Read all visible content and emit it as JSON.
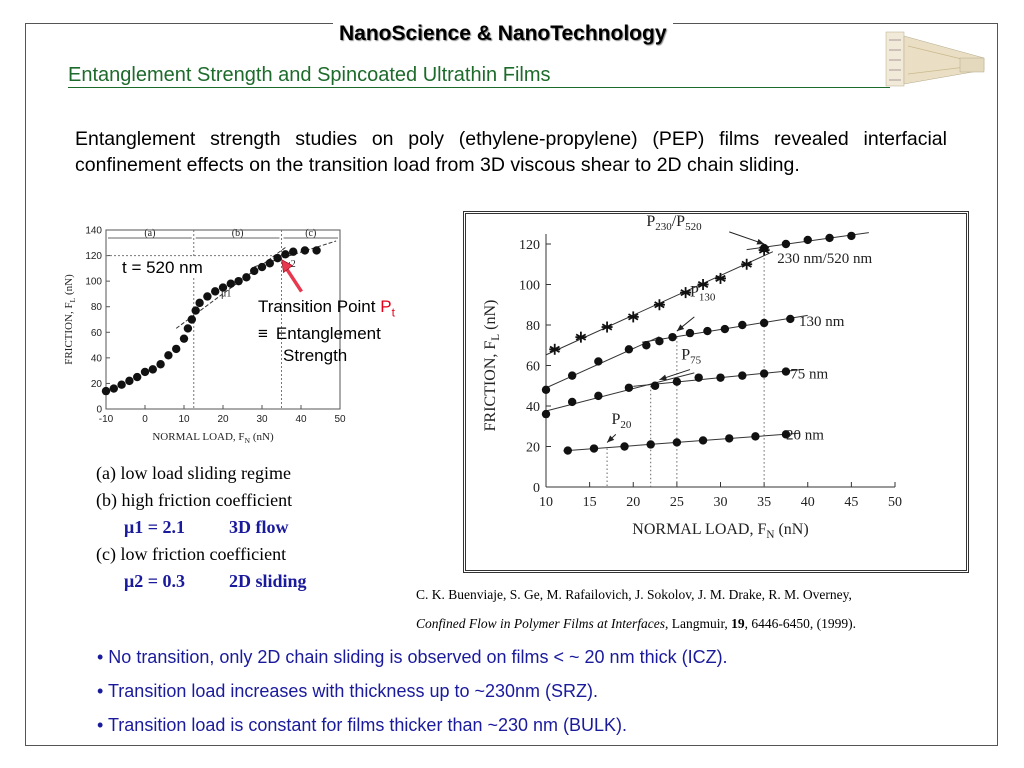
{
  "header": {
    "title": "NanoScience & NanoTechnology",
    "subtitle": "Entanglement Strength  and Spincoated Ultrathin Films"
  },
  "intro": "Entanglement strength studies on poly (ethylene-propylene) (PEP) films revealed interfacial confinement effects on the transition load from 3D viscous shear to 2D chain sliding.",
  "left_annotations": {
    "thickness": "t = 520 nm",
    "transition_point": "Transition Point ",
    "pt_symbol": "P",
    "pt_sub": "t",
    "equiv": "≡",
    "entanglement_1": "Entanglement",
    "entanglement_2": "Strength"
  },
  "regimes": {
    "a": "(a) low load sliding regime",
    "b": "(b) high friction coefficient",
    "mu1": "μ1 = 2.1",
    "mu1_mode": "3D flow",
    "c": "(c) low friction coefficient",
    "mu2": "μ2 = 0.3",
    "mu2_mode": "2D sliding"
  },
  "citation": {
    "authors": "C. K. Buenviaje, S. Ge, M. Rafailovich, J. Sokolov, J. M. Drake, R. M. Overney,",
    "title": "Confined Flow in Polymer Films at Interfaces",
    "journal": ", Langmuir, ",
    "volume": "19",
    "pages": ", 6446-6450, (1999)."
  },
  "bullets": [
    "• No transition, only 2D chain sliding is observed on films < ~ 20 nm thick (ICZ).",
    "• Transition load increases with thickness up to ~230nm (SRZ).",
    "• Transition load is constant for films thicker than ~230 nm (BULK)."
  ],
  "colors": {
    "subtitle_green": "#1d6b2b",
    "bullet_blue": "#1a1a9c",
    "pt_red": "#e4001a",
    "arrow_red": "#e8384f"
  },
  "chart_data": [
    {
      "type": "scatter",
      "xlabel": "NORMAL LOAD, F",
      "xlabel_sub": "N",
      "xlabel_unit": " (nN)",
      "ylabel": "FRICTION, F",
      "ylabel_sub": "L",
      "ylabel_unit": " (nN)",
      "xlim": [
        -10,
        50
      ],
      "ylim": [
        0,
        140
      ],
      "xticks": [
        -10,
        0,
        10,
        20,
        30,
        40,
        50
      ],
      "yticks": [
        0,
        20,
        40,
        60,
        80,
        100,
        120,
        140
      ],
      "regions": [
        "(a)",
        "(b)",
        "(c)"
      ],
      "region_bounds": [
        -10,
        12.5,
        35,
        50
      ],
      "boundaries": [
        12.5,
        35
      ],
      "mu_labels": [
        "μ1",
        "μ2"
      ],
      "reference_y": 120,
      "series": [
        {
          "x": [
            -10,
            -8,
            -6,
            -4,
            -2,
            0,
            2,
            4,
            6,
            8,
            10,
            11,
            12,
            13,
            14,
            16,
            18,
            20,
            22,
            24,
            26,
            28,
            30,
            32,
            34,
            36,
            38,
            41,
            44
          ],
          "y": [
            14,
            16,
            19,
            22,
            25,
            29,
            31,
            35,
            42,
            47,
            55,
            63,
            70,
            77,
            83,
            88,
            92,
            95,
            98,
            100,
            103,
            108,
            111,
            114,
            118,
            121,
            123,
            124,
            124
          ]
        }
      ]
    },
    {
      "type": "scatter",
      "xlabel": "NORMAL LOAD, F",
      "xlabel_sub": "N",
      "xlabel_unit": " (nN)",
      "ylabel": "FRICTION, F",
      "ylabel_sub": "L",
      "ylabel_unit": " (nN)",
      "xlim": [
        10,
        50
      ],
      "ylim": [
        0,
        120
      ],
      "xticks": [
        10,
        15,
        20,
        25,
        30,
        35,
        40,
        45,
        50
      ],
      "yticks": [
        0,
        20,
        40,
        60,
        80,
        100,
        120
      ],
      "series": [
        {
          "name": "230 nm/520 nm",
          "marker": "star",
          "x": [
            11,
            14,
            17,
            20,
            23,
            26,
            28,
            30,
            33,
            35
          ],
          "y": [
            68,
            74,
            79,
            84,
            90,
            96,
            100,
            103,
            110,
            117
          ]
        },
        {
          "name": "230 nm/520 nm",
          "marker": "circle",
          "x": [
            35,
            37.5,
            40,
            42.5,
            45
          ],
          "y": [
            118,
            120,
            122,
            123,
            124
          ]
        },
        {
          "name": "130 nm",
          "marker": "circle",
          "x": [
            10,
            13,
            16,
            19.5,
            21.5,
            23,
            24.5,
            26.5,
            28.5,
            30.5,
            32.5,
            35,
            38
          ],
          "y": [
            48,
            55,
            62,
            68,
            70,
            72,
            74,
            76,
            77,
            78,
            80,
            81,
            83
          ]
        },
        {
          "name": "75 nm",
          "marker": "circle",
          "x": [
            10,
            13,
            16,
            19.5,
            22.5,
            25,
            27.5,
            30,
            32.5,
            35,
            37.5
          ],
          "y": [
            36,
            42,
            45,
            49,
            50,
            52,
            54,
            54,
            55,
            56,
            57
          ]
        },
        {
          "name": "20 nm",
          "marker": "circle",
          "x": [
            12.5,
            15.5,
            19,
            22,
            25,
            28,
            31,
            34,
            37.5
          ],
          "y": [
            18,
            19,
            20,
            21,
            22,
            23,
            24,
            25,
            26
          ]
        }
      ],
      "annotations": [
        {
          "label": "P",
          "sub": "230",
          "suffix": "/P",
          "sub2": "520"
        },
        {
          "label": "P",
          "sub": "130"
        },
        {
          "label": "P",
          "sub": "75"
        },
        {
          "label": "P",
          "sub": "20"
        }
      ],
      "curve_labels": [
        "230 nm/520 nm",
        "130 nm",
        "75 nm",
        "20 nm"
      ]
    }
  ]
}
